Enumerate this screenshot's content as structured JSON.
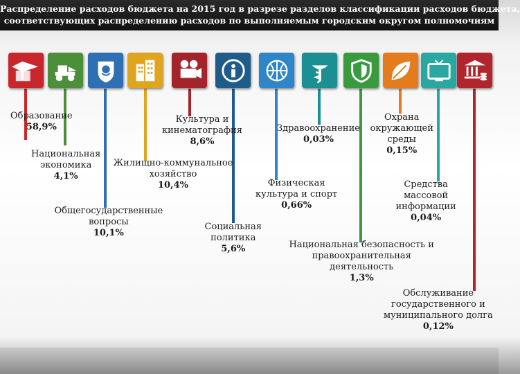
{
  "title": {
    "line1": "Распределение расходов бюджета на 2015 год в разрезе разделов классификации расходов бюджета,",
    "line2": "соответствующих распределению расходов по выполняемым городским округом полномочиям"
  },
  "chart_data": {
    "type": "table",
    "title": "Распределение расходов бюджета на 2015 год в разрезе разделов классификации расходов бюджета, соответствующих распределению расходов по выполняемым городским округом полномочиям",
    "items": [
      {
        "key": "education",
        "name_lines": [
          "Образование"
        ],
        "value_label": "58,9%",
        "value": 58.9,
        "color": "#c8262b",
        "icon": "graduation-cap-book-icon"
      },
      {
        "key": "economy",
        "name_lines": [
          "Национальная",
          "экономика"
        ],
        "value_label": "4,1%",
        "value": 4.1,
        "color": "#4b8f3a",
        "icon": "tractor-icon"
      },
      {
        "key": "general",
        "name_lines": [
          "Общегосударственные",
          "вопросы"
        ],
        "value_label": "10,1%",
        "value": 10.1,
        "color": "#2f6fb3",
        "icon": "coat-of-arms-icon"
      },
      {
        "key": "housing",
        "name_lines": [
          "Жилищно-коммунальное",
          "хозяйство"
        ],
        "value_label": "10,4%",
        "value": 10.4,
        "color": "#e0a51e",
        "icon": "apartment-building-icon"
      },
      {
        "key": "culture",
        "name_lines": [
          "Культура и",
          "кинематография"
        ],
        "value_label": "8,6%",
        "value": 8.6,
        "color": "#a3242a",
        "icon": "film-camera-icon"
      },
      {
        "key": "social",
        "name_lines": [
          "Социальная",
          "политика"
        ],
        "value_label": "5,6%",
        "value": 5.6,
        "color": "#1f5c8a",
        "icon": "person-in-hands-icon"
      },
      {
        "key": "sport",
        "name_lines": [
          "Физическая",
          "культура и спорт"
        ],
        "value_label": "0,66%",
        "value": 0.66,
        "color": "#2e86c8",
        "icon": "basketball-icon"
      },
      {
        "key": "health",
        "name_lines": [
          "Здравоохранение"
        ],
        "value_label": "0,03%",
        "value": 0.03,
        "color": "#1b8f91",
        "icon": "bowl-of-hygieia-icon"
      },
      {
        "key": "security",
        "name_lines": [
          "Национальная безопасность и",
          "правоохранительная",
          "деятельность"
        ],
        "value_label": "1,3%",
        "value": 1.3,
        "color": "#3a9a3e",
        "icon": "shield-icon"
      },
      {
        "key": "environment",
        "name_lines": [
          "Охрана",
          "окружающей",
          "среды"
        ],
        "value_label": "0,15%",
        "value": 0.15,
        "color": "#e47b1d",
        "icon": "leaf-icon"
      },
      {
        "key": "media",
        "name_lines": [
          "Средства",
          "массовой",
          "информации"
        ],
        "value_label": "0,04%",
        "value": 0.04,
        "color": "#2aa7a0",
        "icon": "tv-icon"
      },
      {
        "key": "debt",
        "name_lines": [
          "Обслуживание",
          "государственного и",
          "муниципального долга"
        ],
        "value_label": "0,12%",
        "value": 0.12,
        "color": "#b0262c",
        "icon": "bank-coins-icon"
      }
    ]
  }
}
